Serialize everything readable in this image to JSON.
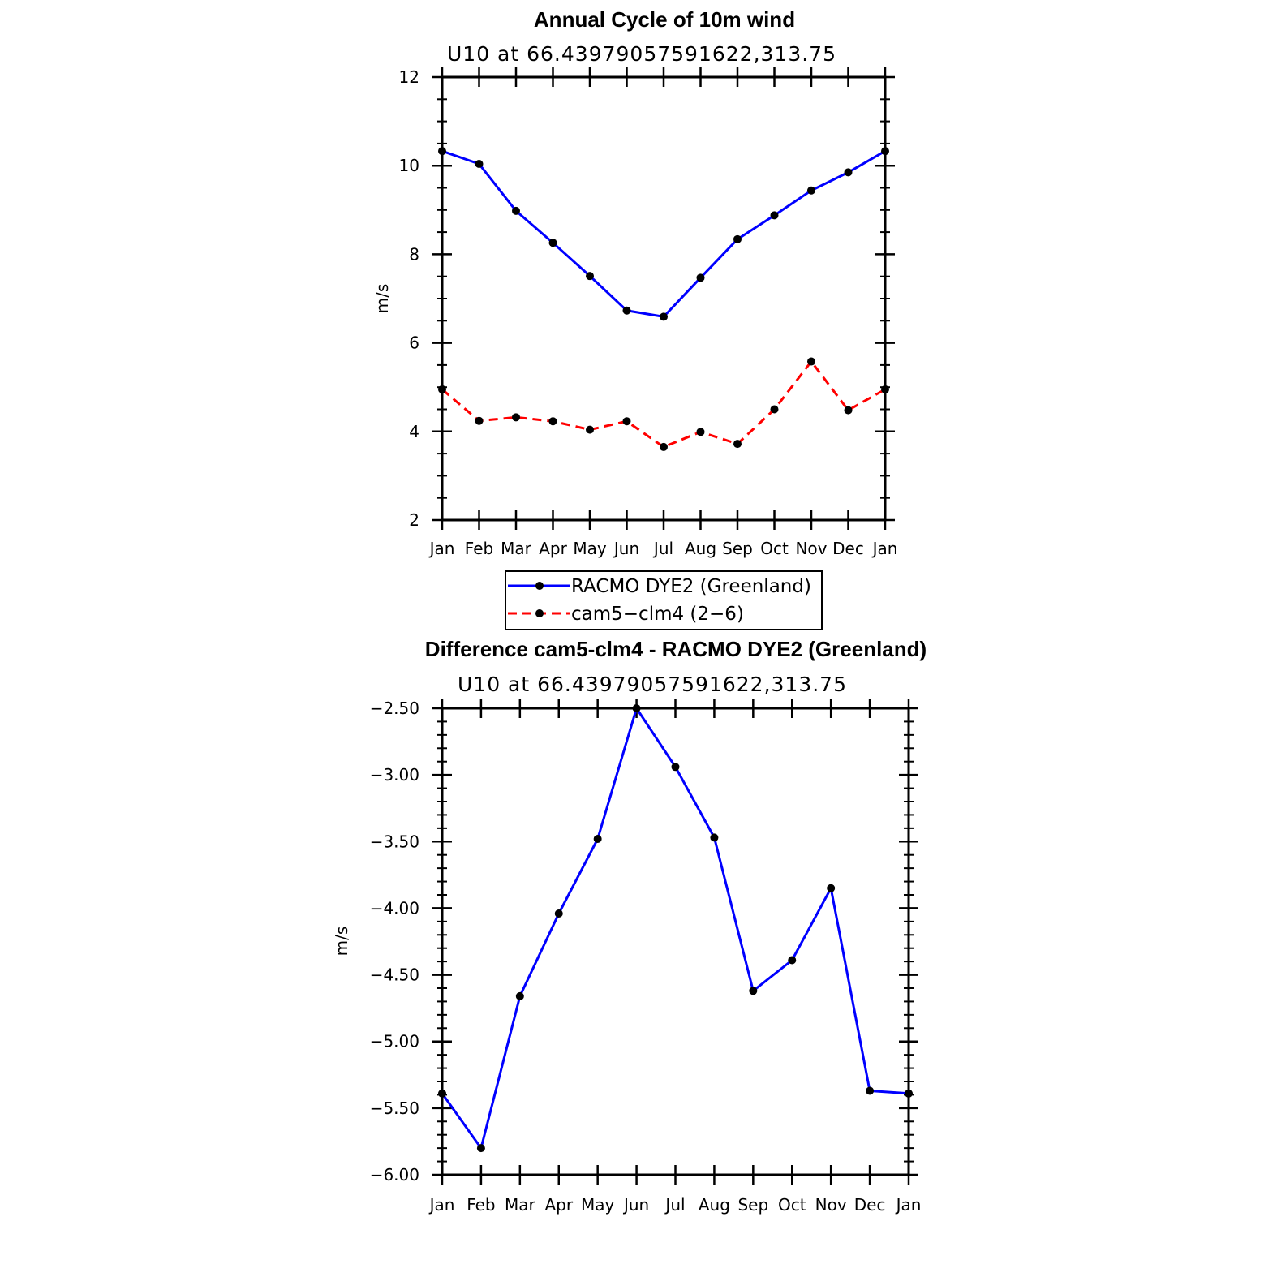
{
  "chart_data": [
    {
      "type": "line",
      "title": "Annual Cycle of 10m wind",
      "subtitle": "U10 at 66.43979057591622,313.75",
      "xlabel": "",
      "ylabel": "m/s",
      "x_tick_labels": [
        "Jan",
        "Feb",
        "Mar",
        "Apr",
        "May",
        "Jun",
        "Jul",
        "Aug",
        "Sep",
        "Oct",
        "Nov",
        "Dec",
        "Jan"
      ],
      "ylim": [
        2,
        12
      ],
      "y_ticks": [
        2,
        4,
        6,
        8,
        10,
        12
      ],
      "y_tick_labels": [
        "2",
        "4",
        "6",
        "8",
        "10",
        "12"
      ],
      "grid": false,
      "legend_position": "bottom-center",
      "series": [
        {
          "name": "RACMO DYE2 (Greenland)",
          "color": "#0000ff",
          "dash": "solid",
          "values": [
            10.33,
            10.04,
            8.98,
            8.26,
            7.51,
            6.73,
            6.59,
            7.47,
            8.34,
            8.88,
            9.44,
            9.85,
            10.33
          ]
        },
        {
          "name": "cam5−clm4 (2−6)",
          "color": "#ff0000",
          "dash": "dashed",
          "values": [
            4.95,
            4.24,
            4.32,
            4.23,
            4.04,
            4.23,
            3.65,
            3.99,
            3.72,
            4.5,
            5.58,
            4.48,
            4.95
          ]
        }
      ]
    },
    {
      "type": "line",
      "title": "Difference cam5-clm4 - RACMO DYE2 (Greenland)",
      "subtitle": "U10 at 66.43979057591622,313.75",
      "xlabel": "",
      "ylabel": "m/s",
      "x_tick_labels": [
        "Jan",
        "Feb",
        "Mar",
        "Apr",
        "May",
        "Jun",
        "Jul",
        "Aug",
        "Sep",
        "Oct",
        "Nov",
        "Dec",
        "Jan"
      ],
      "ylim": [
        -6.0,
        -2.5
      ],
      "y_ticks": [
        -6.0,
        -5.5,
        -5.0,
        -4.5,
        -4.0,
        -3.5,
        -3.0,
        -2.5
      ],
      "y_tick_labels": [
        "−6.00",
        "−5.50",
        "−5.00",
        "−4.50",
        "−4.00",
        "−3.50",
        "−3.00",
        "−2.50"
      ],
      "grid": false,
      "series": [
        {
          "color": "#0000ff",
          "dash": "solid",
          "values": [
            -5.39,
            -5.8,
            -4.66,
            -4.04,
            -3.48,
            -2.5,
            -2.94,
            -3.47,
            -4.62,
            -4.39,
            -3.85,
            -5.37,
            -5.39
          ]
        }
      ]
    }
  ]
}
